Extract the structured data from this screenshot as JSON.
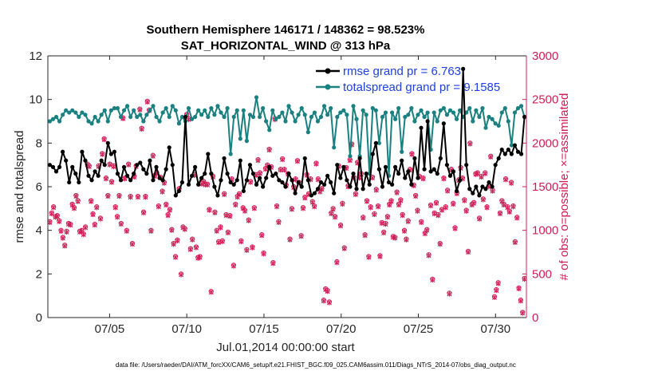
{
  "colors": {
    "rmse": "#000000",
    "spread": "#1a8080",
    "obs": "#d01c55",
    "legend_text": "#1f3fe0",
    "axis": "#262626"
  },
  "chart_data": {
    "type": "line",
    "title_line1": "Southern Hemisphere 146171 / 148362 = 98.523%",
    "title_line2": "SAT_HORIZONTAL_WIND @ 313 hPa",
    "xlabel": "Jul.01,2014 00:00:00 start",
    "ylabel_left": "rmse and totalspread",
    "ylabel_right": "# of obs: o=possible; ×=assimilated",
    "footnote": "data file: /Users/raeder/DAI/ATM_forcXX/CAM6_setup/f.e21.FHIST_BGC.f09_025.CAM6assim.011/Diags_NTrS_2014-07/obs_diag_output.nc",
    "xlim": [
      1,
      32
    ],
    "ylim_left": [
      0,
      12
    ],
    "ylim_right": [
      0,
      3000
    ],
    "x_ticks": [
      5,
      10,
      15,
      20,
      25,
      30
    ],
    "x_tick_labels": [
      "07/05",
      "07/10",
      "07/15",
      "07/20",
      "07/25",
      "07/30"
    ],
    "y_left_ticks": [
      0,
      2,
      4,
      6,
      8,
      10,
      12
    ],
    "y_left_tick_labels": [
      "0",
      "2",
      "4",
      "6",
      "8",
      "10",
      "12"
    ],
    "y_right_ticks": [
      0,
      500,
      1000,
      1500,
      2000,
      2500,
      3000
    ],
    "y_right_tick_labels": [
      "0",
      "500",
      "1000",
      "1500",
      "2000",
      "2500",
      "3000"
    ],
    "legend": {
      "placement": "top-right",
      "rmse_label": "rmse grand pr = 6.763",
      "spread_label": "totalspread grand pr = 9.1585"
    },
    "series": [
      {
        "name": "rmse",
        "y": [
          7.0,
          6.9,
          6.7,
          6.9,
          7.6,
          7.2,
          6.2,
          6.9,
          6.6,
          6.2,
          7.6,
          7.2,
          6.5,
          6.3,
          6.7,
          6.5,
          7.2,
          7.0,
          8.0,
          7.5,
          7.6,
          6.6,
          6.3,
          6.9,
          6.5,
          6.3,
          6.6,
          7.0,
          7.1,
          6.8,
          6.6,
          7.2,
          6.3,
          6.9,
          6.4,
          6.3,
          6.8,
          7.8,
          7.0,
          5.6,
          5.8,
          6.2,
          9.2,
          6.1,
          6.5,
          6.9,
          6.1,
          6.4,
          6.6,
          7.5,
          6.6,
          6.0,
          5.6,
          6.3,
          7.3,
          6.6,
          6.2,
          6.1,
          6.3,
          7.2,
          5.8,
          6.3,
          7.0,
          6.6,
          6.1,
          6.4,
          6.0,
          6.4,
          6.9,
          6.5,
          6.6,
          6.3,
          6.2,
          6.0,
          6.6,
          6.3,
          5.7,
          6.2,
          6.0,
          7.3,
          6.3,
          5.6,
          5.7,
          5.9,
          6.2,
          6.1,
          6.5,
          6.2,
          5.7,
          7.0,
          6.4,
          6.9,
          6.3,
          6.0,
          6.6,
          5.9,
          7.3,
          5.9,
          6.6,
          6.1,
          7.5,
          8.0,
          6.8,
          6.0,
          6.9,
          6.2,
          6.1,
          6.9,
          6.6,
          7.2,
          6.4,
          6.7,
          6.1,
          7.3,
          6.4,
          8.7,
          6.8,
          9.0,
          6.7,
          6.8,
          6.6,
          7.3,
          8.9,
          7.0,
          6.5,
          6.7,
          5.8,
          6.3,
          11.4,
          7.0,
          5.9,
          5.7,
          6.0,
          5.6,
          6.0,
          5.9,
          6.2,
          6.0,
          7.0,
          7.3,
          7.7,
          7.5,
          7.7,
          7.5,
          7.9,
          7.6,
          7.5,
          9.2
        ]
      },
      {
        "name": "totalspread",
        "y": [
          9.0,
          9.1,
          9.2,
          9.0,
          9.3,
          9.5,
          9.4,
          9.5,
          9.4,
          9.2,
          9.4,
          9.3,
          9.0,
          8.9,
          9.2,
          9.0,
          9.3,
          9.5,
          9.0,
          9.5,
          9.6,
          9.6,
          9.2,
          9.5,
          9.7,
          9.2,
          9.5,
          9.2,
          9.3,
          9.0,
          9.3,
          9.5,
          9.7,
          9.2,
          9.0,
          9.4,
          9.6,
          9.2,
          9.7,
          9.5,
          8.9,
          9.2,
          9.0,
          9.6,
          9.1,
          9.2,
          9.5,
          9.3,
          9.5,
          9.2,
          9.6,
          9.3,
          9.7,
          9.4,
          9.2,
          9.6,
          7.5,
          9.2,
          9.5,
          8.2,
          9.5,
          8.1,
          9.3,
          9.2,
          10.1,
          9.2,
          9.6,
          9.0,
          8.6,
          9.5,
          9.1,
          9.2,
          9.4,
          9.0,
          9.7,
          9.4,
          9.0,
          9.3,
          9.6,
          9.3,
          8.5,
          9.2,
          9.4,
          9.0,
          9.2,
          9.7,
          9.3,
          9.6,
          7.8,
          9.2,
          9.4,
          9.5,
          9.3,
          7.4,
          9.7,
          9.1,
          7.4,
          9.5,
          9.3,
          6.6,
          9.6,
          9.5,
          8.0,
          9.2,
          9.4,
          6.5,
          9.4,
          9.1,
          9.6,
          7.6,
          9.2,
          9.3,
          9.6,
          9.0,
          9.3,
          9.5,
          9.2,
          9.4,
          7.7,
          9.4,
          9.0,
          9.5,
          9.6,
          9.3,
          9.5,
          9.4,
          9.1,
          9.5,
          9.2,
          9.4,
          9.6,
          9.0,
          9.5,
          9.2,
          9.6,
          8.7,
          9.2,
          9.1,
          8.9,
          8.8,
          9.4,
          9.6,
          9.0,
          7.9,
          9.4,
          9.6,
          9.7,
          9.2
        ]
      }
    ],
    "obs_possible": [
      1100,
      1200,
      1270,
      1160,
      1170,
      1110,
      1000,
      920,
      830,
      990,
      1080,
      1070,
      1300,
      1260,
      1400,
      1340,
      990,
      1000,
      960,
      1040,
      1760,
      1740,
      1340,
      1190,
      1070,
      1270,
      1740,
      1140,
      1880,
      2050,
      1600,
      1400,
      1760,
      1560,
      1740,
      1270,
      1160,
      1400,
      1080,
      2290,
      1600,
      1000,
      1760,
      1390,
      850,
      1620,
      1740,
      1390,
      2390,
      2170,
      1210,
      1390,
      2480,
      2380,
      1000,
      1860,
      1630,
      1660,
      1280,
      1610,
      1450,
      1550,
      1300,
      1180,
      1240,
      1010,
      850,
      700,
      890,
      1480,
      500,
      1040,
      1020,
      2330,
      2280,
      790,
      900,
      1640,
      810,
      690,
      700,
      1540,
      1560,
      1530,
      1530,
      1240,
      300,
      1620,
      1210,
      1000,
      870,
      1040,
      880,
      1420,
      1180,
      980,
      1170,
      1590,
      600,
      1300,
      1390,
      1420,
      880,
      1260,
      1230,
      780,
      1120,
      1560,
      810,
      1260,
      1640,
      1810,
      1660,
      950,
      740,
      1710,
      1750,
      1930,
      1730,
      630,
      2280,
      1280,
      1100,
      1700,
      1820,
      1700,
      1520,
      1650,
      900,
      1250,
      1500,
      1590,
      1800,
      1550,
      940,
      1260,
      1380,
      1640,
      1420,
      1590,
      1330,
      1280,
      1770,
      1590,
      1450,
      1480,
      200,
      330,
      310,
      180,
      1200,
      1250,
      1160,
      640,
      1740,
      1060,
      1310,
      800,
      1720,
      1510,
      1810,
      1990,
      1610,
      1420,
      1780,
      1610,
      1650,
      1150,
      950,
      1340,
      700,
      1270,
      1610,
      1190,
      1470,
      1280,
      710,
      1090,
      980,
      1080,
      1160,
      1300,
      1340,
      930,
      920,
      1440,
      1300,
      1350,
      1180,
      1000,
      900,
      1110,
      1700,
      1880,
      1520,
      1400,
      1230,
      1620,
      1100,
      1600,
      970,
      1010,
      720,
      1290,
      440,
      1200,
      1320,
      1180,
      850,
      1240,
      1600,
      1270,
      1460,
      280,
      1700,
      1310,
      1030,
      1430,
      1580,
      1720,
      1600,
      1350,
      1230,
      760,
      2000,
      1300,
      1320,
      1650,
      1660,
      1140,
      1620,
      1360,
      1660,
      1270,
      1510,
      1850,
      1460,
      240,
      320,
      400,
      1200,
      1340,
      1300,
      1590,
      1270,
      1220,
      1550,
      1280,
      870,
      1150,
      340,
      200,
      60,
      450
    ],
    "obs_assimilated": [
      1090,
      1190,
      1260,
      1150,
      1160,
      1100,
      990,
      910,
      820,
      980,
      1070,
      1060,
      1290,
      1250,
      1390,
      1330,
      980,
      990,
      950,
      1030,
      1750,
      1730,
      1330,
      1180,
      1060,
      1260,
      1730,
      1130,
      1870,
      2040,
      1590,
      1390,
      1750,
      1550,
      1730,
      1260,
      1150,
      1390,
      1070,
      2280,
      1590,
      990,
      1750,
      1380,
      840,
      1610,
      1730,
      1380,
      2380,
      2160,
      1200,
      1380,
      2470,
      2370,
      990,
      1850,
      1620,
      1650,
      1270,
      1600,
      1440,
      1540,
      1290,
      1170,
      1230,
      1000,
      840,
      690,
      880,
      1470,
      490,
      1030,
      1010,
      2320,
      2270,
      780,
      890,
      1630,
      800,
      680,
      690,
      1530,
      1550,
      1520,
      1520,
      1230,
      290,
      1610,
      1200,
      990,
      860,
      1030,
      870,
      1410,
      1170,
      970,
      1160,
      1580,
      590,
      1290,
      1380,
      1410,
      870,
      1250,
      1220,
      770,
      1110,
      1550,
      800,
      1250,
      1630,
      1800,
      1650,
      940,
      730,
      1700,
      1740,
      1920,
      1720,
      620,
      2270,
      1270,
      1090,
      1690,
      1810,
      1690,
      1510,
      1640,
      890,
      1240,
      1490,
      1580,
      1790,
      1540,
      930,
      1250,
      1370,
      1630,
      1410,
      1580,
      1320,
      1270,
      1760,
      1580,
      1440,
      1470,
      190,
      320,
      300,
      170,
      1190,
      1240,
      1150,
      630,
      1730,
      1050,
      1300,
      790,
      1710,
      1500,
      1800,
      1980,
      1600,
      1410,
      1770,
      1600,
      1640,
      1140,
      940,
      1330,
      690,
      1260,
      1600,
      1180,
      1460,
      1270,
      700,
      1080,
      970,
      1070,
      1150,
      1290,
      1330,
      920,
      910,
      1430,
      1290,
      1340,
      1170,
      990,
      890,
      1100,
      1690,
      1870,
      1510,
      1390,
      1220,
      1610,
      1090,
      1590,
      960,
      1000,
      710,
      1280,
      430,
      1190,
      1310,
      1170,
      840,
      1230,
      1590,
      1260,
      1450,
      270,
      1690,
      1300,
      1020,
      1420,
      1570,
      1710,
      1590,
      1340,
      1220,
      750,
      1990,
      1290,
      1310,
      1640,
      1650,
      1130,
      1610,
      1350,
      1650,
      1260,
      1500,
      1840,
      1450,
      230,
      310,
      390,
      1190,
      1330,
      1290,
      1580,
      1260,
      1210,
      1540,
      1270,
      860,
      1140,
      330,
      190,
      50,
      440
    ]
  }
}
